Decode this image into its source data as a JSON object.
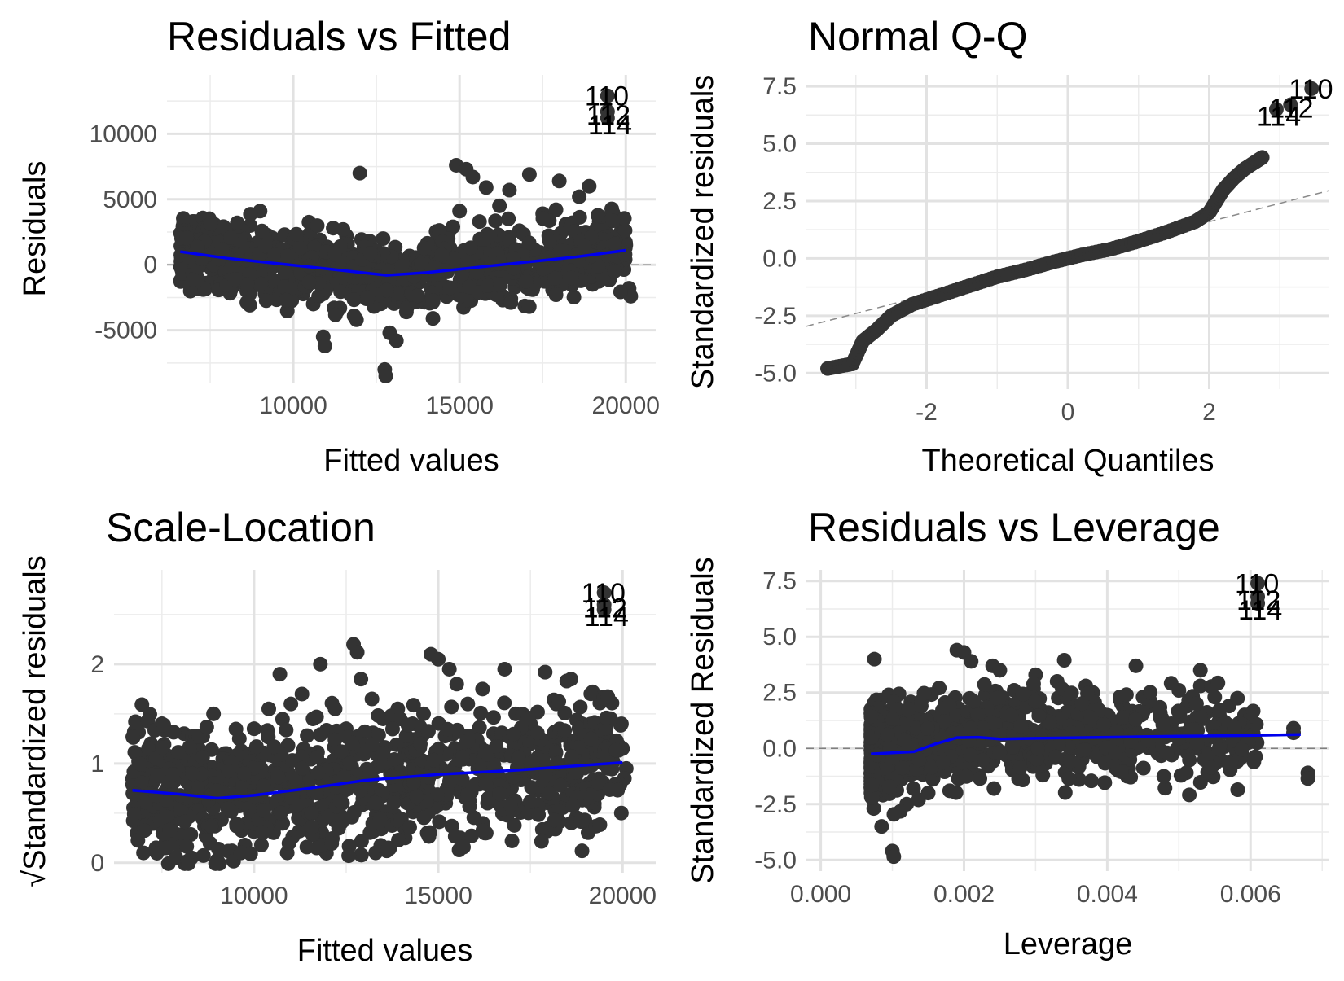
{
  "chart_data": [
    {
      "id": "rvf",
      "type": "scatter",
      "title": "Residuals vs Fitted",
      "xlabel": "Fitted values",
      "ylabel": "Residuals",
      "xlim": [
        6200,
        20900
      ],
      "ylim": [
        -9000,
        14500
      ],
      "xticks": [
        {
          "value": 10000,
          "label": "10000"
        },
        {
          "value": 15000,
          "label": "15000"
        },
        {
          "value": 20000,
          "label": "20000"
        }
      ],
      "yticks": [
        {
          "value": -5000,
          "label": "-5000"
        },
        {
          "value": 0,
          "label": "0"
        },
        {
          "value": 5000,
          "label": "5000"
        },
        {
          "value": 10000,
          "label": "10000"
        }
      ],
      "hline": 0,
      "grid": true,
      "trend": [
        [
          6600,
          1000
        ],
        [
          8000,
          500
        ],
        [
          9500,
          100
        ],
        [
          11000,
          -300
        ],
        [
          12800,
          -800
        ],
        [
          14000,
          -600
        ],
        [
          15500,
          -200
        ],
        [
          17000,
          200
        ],
        [
          18500,
          600
        ],
        [
          20000,
          1100
        ]
      ],
      "points": [
        [
          6700,
          3200
        ],
        [
          6900,
          2400
        ],
        [
          7100,
          1800
        ],
        [
          7300,
          2900
        ],
        [
          7500,
          1500
        ],
        [
          7800,
          2200
        ],
        [
          8000,
          1200
        ],
        [
          8400,
          2600
        ],
        [
          8700,
          3000
        ],
        [
          9000,
          4100
        ],
        [
          6800,
          -400
        ],
        [
          7000,
          -900
        ],
        [
          7400,
          -1400
        ],
        [
          7700,
          -600
        ],
        [
          8200,
          -1600
        ],
        [
          8600,
          -2000
        ],
        [
          9100,
          -1100
        ],
        [
          9500,
          -2300
        ],
        [
          9900,
          700
        ],
        [
          10200,
          1600
        ],
        [
          10500,
          2400
        ],
        [
          10800,
          1900
        ],
        [
          11200,
          2800
        ],
        [
          11600,
          2200
        ],
        [
          12000,
          7000
        ],
        [
          12300,
          1800
        ],
        [
          12700,
          2000
        ],
        [
          10100,
          -2100
        ],
        [
          10600,
          -3000
        ],
        [
          10900,
          -5500
        ],
        [
          10950,
          -6200
        ],
        [
          11400,
          -3300
        ],
        [
          11900,
          -4200
        ],
        [
          12200,
          -2600
        ],
        [
          12750,
          -8000
        ],
        [
          12780,
          -8500
        ],
        [
          12900,
          -5200
        ],
        [
          13100,
          -5800
        ],
        [
          13400,
          -3600
        ],
        [
          13900,
          -2800
        ],
        [
          14200,
          -4100
        ],
        [
          14600,
          -1700
        ],
        [
          14800,
          2900
        ],
        [
          14900,
          7600
        ],
        [
          15000,
          4100
        ],
        [
          15200,
          7300
        ],
        [
          15400,
          6700
        ],
        [
          15600,
          3300
        ],
        [
          15800,
          5900
        ],
        [
          16200,
          4500
        ],
        [
          16500,
          5700
        ],
        [
          16800,
          2600
        ],
        [
          17100,
          6900
        ],
        [
          17500,
          3900
        ],
        [
          17900,
          4200
        ],
        [
          18000,
          6400
        ],
        [
          18200,
          3100
        ],
        [
          18600,
          5200
        ],
        [
          18900,
          6000
        ],
        [
          19200,
          3300
        ],
        [
          15300,
          -2400
        ],
        [
          15700,
          -1100
        ],
        [
          16300,
          -2700
        ],
        [
          16600,
          -700
        ],
        [
          17200,
          -1900
        ],
        [
          17700,
          -400
        ],
        [
          18300,
          -1200
        ],
        [
          18800,
          -300
        ],
        [
          19000,
          -1500
        ],
        [
          20000,
          1500
        ],
        [
          20100,
          -1800
        ],
        [
          20150,
          -2400
        ],
        [
          19400,
          500
        ],
        [
          14300,
          900
        ],
        [
          13700,
          -300
        ]
      ],
      "outliers": [
        {
          "label": "110",
          "x": 19450,
          "y": 12900
        },
        {
          "label": "112",
          "x": 19450,
          "y": 11700
        },
        {
          "label": "114",
          "x": 19450,
          "y": 11200
        }
      ]
    },
    {
      "id": "qq",
      "type": "scatter",
      "title": "Normal Q-Q",
      "xlabel": "Theoretical Quantiles",
      "ylabel": "Standardized residuals",
      "xlim": [
        -3.7,
        3.7
      ],
      "ylim": [
        -5.7,
        8.0
      ],
      "xticks": [
        {
          "value": -2,
          "label": "-2"
        },
        {
          "value": 0,
          "label": "0"
        },
        {
          "value": 2,
          "label": "2"
        }
      ],
      "yticks": [
        {
          "value": -5.0,
          "label": "-5.0"
        },
        {
          "value": -2.5,
          "label": "-2.5"
        },
        {
          "value": 0.0,
          "label": "0.0"
        },
        {
          "value": 2.5,
          "label": "2.5"
        },
        {
          "value": 5.0,
          "label": "5.0"
        },
        {
          "value": 7.5,
          "label": "7.5"
        }
      ],
      "refline": {
        "slope": 0.8,
        "intercept": 0
      },
      "grid": true,
      "curve": [
        [
          -3.4,
          -4.8
        ],
        [
          -3.05,
          -4.6
        ],
        [
          -2.9,
          -3.6
        ],
        [
          -2.7,
          -3.1
        ],
        [
          -2.5,
          -2.5
        ],
        [
          -2.2,
          -2.0
        ],
        [
          -1.8,
          -1.6
        ],
        [
          -1.4,
          -1.2
        ],
        [
          -1.0,
          -0.8
        ],
        [
          -0.6,
          -0.5
        ],
        [
          -0.2,
          -0.15
        ],
        [
          0.2,
          0.15
        ],
        [
          0.6,
          0.4
        ],
        [
          1.0,
          0.75
        ],
        [
          1.4,
          1.15
        ],
        [
          1.8,
          1.6
        ],
        [
          2.0,
          2.0
        ],
        [
          2.1,
          2.5
        ],
        [
          2.2,
          3.0
        ],
        [
          2.35,
          3.5
        ],
        [
          2.5,
          3.9
        ],
        [
          2.65,
          4.2
        ],
        [
          2.75,
          4.4
        ]
      ],
      "outliers": [
        {
          "label": "110",
          "x": 3.45,
          "y": 7.4
        },
        {
          "label": "112",
          "x": 3.15,
          "y": 6.7
        },
        {
          "label": "114",
          "x": 2.95,
          "y": 6.5
        }
      ]
    },
    {
      "id": "sl",
      "type": "scatter",
      "title": "Scale-Location",
      "xlabel": "Fitted values",
      "ylabel": "√Standardized residuals",
      "xlim": [
        6200,
        20900
      ],
      "ylim": [
        -0.1,
        2.95
      ],
      "xticks": [
        {
          "value": 10000,
          "label": "10000"
        },
        {
          "value": 15000,
          "label": "15000"
        },
        {
          "value": 20000,
          "label": "20000"
        }
      ],
      "yticks": [
        {
          "value": 0,
          "label": "0"
        },
        {
          "value": 1,
          "label": "1"
        },
        {
          "value": 2,
          "label": "2"
        }
      ],
      "grid": true,
      "trend": [
        [
          6700,
          0.73
        ],
        [
          8000,
          0.69
        ],
        [
          9000,
          0.65
        ],
        [
          10000,
          0.68
        ],
        [
          11500,
          0.75
        ],
        [
          13000,
          0.83
        ],
        [
          15000,
          0.89
        ],
        [
          17000,
          0.93
        ],
        [
          18500,
          0.97
        ],
        [
          20000,
          1.01
        ]
      ],
      "points": [
        [
          6800,
          1.35
        ],
        [
          7200,
          1.2
        ],
        [
          7500,
          1.4
        ],
        [
          7800,
          1.05
        ],
        [
          8100,
          1.3
        ],
        [
          8500,
          1.15
        ],
        [
          8900,
          1.5
        ],
        [
          9200,
          1.1
        ],
        [
          9600,
          1.25
        ],
        [
          10000,
          1.35
        ],
        [
          10400,
          1.55
        ],
        [
          10700,
          1.9
        ],
        [
          11000,
          1.6
        ],
        [
          11300,
          1.7
        ],
        [
          11600,
          1.45
        ],
        [
          11800,
          2.0
        ],
        [
          12200,
          1.55
        ],
        [
          12500,
          1.35
        ],
        [
          12700,
          2.2
        ],
        [
          12800,
          2.12
        ],
        [
          12900,
          1.85
        ],
        [
          13200,
          1.65
        ],
        [
          13500,
          1.45
        ],
        [
          13900,
          1.55
        ],
        [
          14300,
          1.4
        ],
        [
          14600,
          1.5
        ],
        [
          14800,
          2.1
        ],
        [
          15000,
          2.05
        ],
        [
          15300,
          1.95
        ],
        [
          15500,
          1.8
        ],
        [
          15800,
          1.6
        ],
        [
          16200,
          1.75
        ],
        [
          16500,
          1.3
        ],
        [
          16800,
          1.95
        ],
        [
          17100,
          1.5
        ],
        [
          17500,
          1.4
        ],
        [
          17900,
          1.92
        ],
        [
          18200,
          1.6
        ],
        [
          18600,
          1.85
        ],
        [
          18900,
          1.4
        ],
        [
          19200,
          1.1
        ],
        [
          19400,
          1.2
        ],
        [
          20000,
          1.15
        ],
        [
          20100,
          0.95
        ],
        [
          20050,
          0.85
        ],
        [
          7000,
          0.1
        ],
        [
          7600,
          0.15
        ],
        [
          8300,
          0.05
        ],
        [
          8800,
          0.2
        ],
        [
          9400,
          0.12
        ],
        [
          10200,
          0.18
        ],
        [
          10900,
          0.1
        ],
        [
          11700,
          0.15
        ],
        [
          12900,
          0.08
        ],
        [
          13300,
          0.1
        ],
        [
          13600,
          0.12
        ],
        [
          14100,
          0.25
        ],
        [
          14700,
          0.3
        ],
        [
          15600,
          0.25
        ],
        [
          16300,
          0.3
        ],
        [
          17000,
          0.22
        ],
        [
          18000,
          0.35
        ],
        [
          18900,
          0.12
        ],
        [
          7300,
          0.45
        ],
        [
          8200,
          0.55
        ],
        [
          9900,
          0.5
        ],
        [
          11200,
          0.45
        ],
        [
          12400,
          0.6
        ],
        [
          14000,
          0.65
        ],
        [
          15200,
          0.6
        ],
        [
          16700,
          0.7
        ],
        [
          17800,
          0.75
        ],
        [
          19100,
          0.8
        ],
        [
          10500,
          0.9
        ],
        [
          13800,
          1.0
        ]
      ],
      "outliers": [
        {
          "label": "110",
          "x": 19500,
          "y": 2.72
        },
        {
          "label": "112",
          "x": 19500,
          "y": 2.6
        },
        {
          "label": "114",
          "x": 19500,
          "y": 2.55
        }
      ]
    },
    {
      "id": "rvl",
      "type": "scatter",
      "title": "Residuals vs Leverage",
      "xlabel": "Leverage",
      "ylabel": "Standardized Residuals",
      "xlim": [
        -0.0002,
        0.0071
      ],
      "ylim": [
        -5.5,
        8.0
      ],
      "xticks": [
        {
          "value": 0.0,
          "label": "0.000"
        },
        {
          "value": 0.002,
          "label": "0.002"
        },
        {
          "value": 0.004,
          "label": "0.004"
        },
        {
          "value": 0.006,
          "label": "0.006"
        }
      ],
      "yticks": [
        {
          "value": -5.0,
          "label": "-5.0"
        },
        {
          "value": -2.5,
          "label": "-2.5"
        },
        {
          "value": 0.0,
          "label": "0.0"
        },
        {
          "value": 2.5,
          "label": "2.5"
        },
        {
          "value": 5.0,
          "label": "5.0"
        },
        {
          "value": 7.5,
          "label": "7.5"
        }
      ],
      "hline": 0,
      "grid": true,
      "trend": [
        [
          0.0007,
          -0.25
        ],
        [
          0.001,
          -0.2
        ],
        [
          0.0013,
          -0.15
        ],
        [
          0.0016,
          0.2
        ],
        [
          0.0019,
          0.48
        ],
        [
          0.0022,
          0.5
        ],
        [
          0.0025,
          0.42
        ],
        [
          0.003,
          0.45
        ],
        [
          0.004,
          0.5
        ],
        [
          0.005,
          0.55
        ],
        [
          0.006,
          0.58
        ],
        [
          0.0067,
          0.62
        ]
      ],
      "points": [
        [
          0.00075,
          4.0
        ],
        [
          0.0008,
          2.0
        ],
        [
          0.00085,
          -3.5
        ],
        [
          0.00095,
          2.4
        ],
        [
          0.001,
          -4.6
        ],
        [
          0.00102,
          -4.85
        ],
        [
          0.0011,
          1.5
        ],
        [
          0.0012,
          -2.5
        ],
        [
          0.0014,
          1.3
        ],
        [
          0.0015,
          -2.0
        ],
        [
          0.0017,
          0.9
        ],
        [
          0.0018,
          -1.9
        ],
        [
          0.0019,
          4.4
        ],
        [
          0.002,
          4.3
        ],
        [
          0.0021,
          3.9
        ],
        [
          0.0022,
          -1.2
        ],
        [
          0.0023,
          2.4
        ],
        [
          0.0024,
          3.7
        ],
        [
          0.0025,
          3.5
        ],
        [
          0.0026,
          2.0
        ],
        [
          0.0027,
          2.6
        ],
        [
          0.0028,
          -0.7
        ],
        [
          0.003,
          3.3
        ],
        [
          0.0031,
          -1.2
        ],
        [
          0.0032,
          1.0
        ],
        [
          0.0033,
          3.0
        ],
        [
          0.0034,
          3.95
        ],
        [
          0.0035,
          2.0
        ],
        [
          0.0036,
          0.5
        ],
        [
          0.0037,
          2.8
        ],
        [
          0.0038,
          2.5
        ],
        [
          0.0039,
          1.5
        ],
        [
          0.004,
          -0.4
        ],
        [
          0.0041,
          1.2
        ],
        [
          0.0042,
          2.0
        ],
        [
          0.0043,
          -0.9
        ],
        [
          0.0044,
          3.7
        ],
        [
          0.0045,
          2.3
        ],
        [
          0.0046,
          0.3
        ],
        [
          0.0047,
          -0.2
        ],
        [
          0.0048,
          1.0
        ],
        [
          0.005,
          2.6
        ],
        [
          0.0052,
          0.5
        ],
        [
          0.0053,
          3.5
        ],
        [
          0.0053,
          2.8
        ],
        [
          0.0054,
          -0.3
        ],
        [
          0.0055,
          2.3
        ],
        [
          0.0055,
          -0.7
        ],
        [
          0.0057,
          1.9
        ],
        [
          0.0066,
          0.9
        ],
        [
          0.0066,
          0.7
        ],
        [
          0.0068,
          -1.1
        ],
        [
          0.0068,
          -1.35
        ],
        [
          0.0022,
          1.7
        ],
        [
          0.0029,
          -0.2
        ],
        [
          0.0034,
          -0.5
        ],
        [
          0.0041,
          0.1
        ],
        [
          0.0049,
          -0.3
        ],
        [
          0.0012,
          1.0
        ],
        [
          0.0016,
          -1.0
        ]
      ],
      "outliers": [
        {
          "label": "110",
          "x": 0.0061,
          "y": 7.4
        },
        {
          "label": "112",
          "x": 0.0061,
          "y": 6.8
        },
        {
          "label": "114",
          "x": 0.0061,
          "y": 6.5
        }
      ]
    }
  ]
}
